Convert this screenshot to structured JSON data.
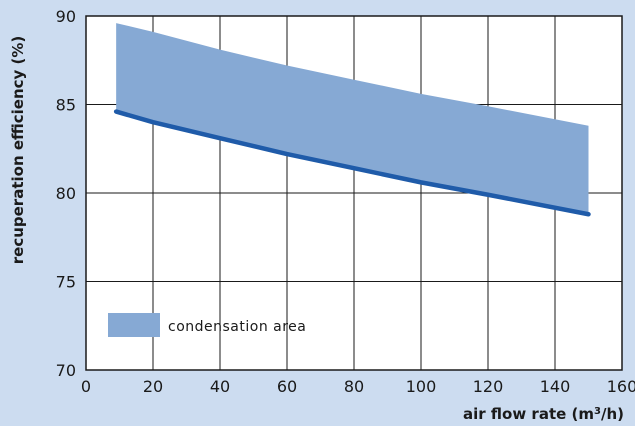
{
  "chart_data": {
    "type": "area",
    "x_min": 0,
    "x_max": 160,
    "y_min": 70,
    "y_max": 90,
    "x_ticks": [
      0,
      20,
      40,
      60,
      80,
      100,
      120,
      140,
      160
    ],
    "y_ticks": [
      70,
      75,
      80,
      85,
      90
    ],
    "x_tick_labels": [
      "0",
      "20",
      "40",
      "60",
      "80",
      "100",
      "120",
      "140",
      "160"
    ],
    "y_tick_labels": [
      "70",
      "75",
      "80",
      "85",
      "90"
    ],
    "xlabel_prefix": "air flow rate (m",
    "xlabel_sup": "3",
    "xlabel_suffix": "/h)",
    "ylabel": "recuperation efficiency (%)",
    "grid": true,
    "series": [
      {
        "role": "area-top",
        "x": [
          9,
          20,
          40,
          60,
          80,
          100,
          120,
          150
        ],
        "y": [
          89.6,
          89.1,
          88.1,
          87.2,
          86.4,
          85.6,
          84.9,
          83.8
        ]
      },
      {
        "role": "line",
        "x": [
          9,
          20,
          40,
          60,
          80,
          100,
          120,
          150
        ],
        "y": [
          84.6,
          84.0,
          83.1,
          82.2,
          81.4,
          80.6,
          79.9,
          78.8
        ]
      }
    ],
    "legend": {
      "label": "condensation area",
      "placement": "bottom-left"
    },
    "colors": {
      "area": "#86a9d4",
      "line": "#1f5ba9",
      "grid": "#1a1a1a",
      "background": "#ccdcf0",
      "plot_bg": "#ffffff"
    }
  }
}
